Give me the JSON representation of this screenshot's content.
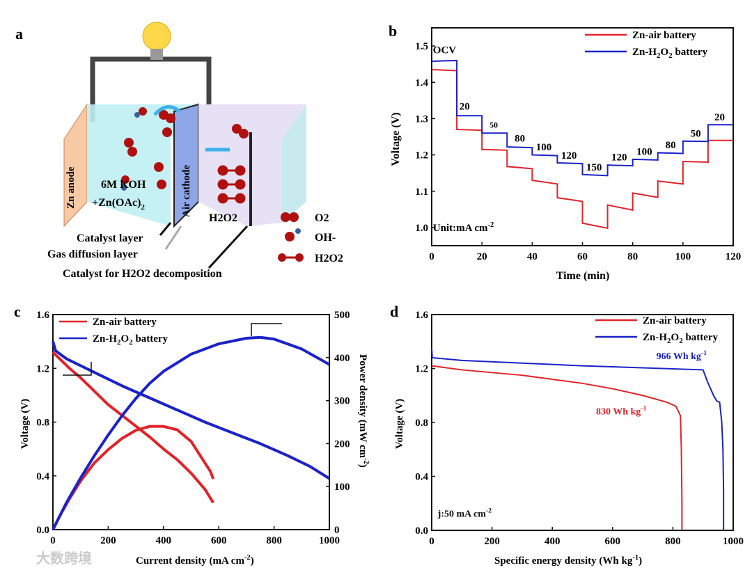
{
  "panel_a": {
    "label": "a",
    "anode": "Zn anode",
    "cathode": "Air cathode",
    "electrolyte_line1": "6M KOH",
    "electrolyte_line2": "+Zn(OAc)",
    "electrolyte_sub": "2",
    "h2o2_cell": "H2O2",
    "legend": [
      "O2",
      "OH-",
      "H2O2"
    ],
    "layers": [
      "Catalyst layer",
      "Gas diffusion layer",
      "Catalyst for H2O2 decomposition"
    ],
    "colors": {
      "red": "#b01010",
      "blue": "#3a5fa0"
    }
  },
  "watermark": "大数跨境",
  "chart_data": [
    {
      "id": "b",
      "label": "b",
      "type": "line",
      "xlabel": "Time (min)",
      "ylabel": "Voltage (V)",
      "xlim": [
        0,
        120
      ],
      "ylim": [
        0.95,
        1.55
      ],
      "xticks": [
        0,
        20,
        40,
        60,
        80,
        100,
        120
      ],
      "yticks": [
        1.0,
        1.1,
        1.2,
        1.3,
        1.4,
        1.5
      ],
      "legend_position": "top-right",
      "series": [
        {
          "name": "Zn-air battery",
          "color": "#e0242a",
          "steps": [
            [
              0,
              10,
              1.435,
              1.432
            ],
            [
              10,
              20,
              1.27,
              1.268
            ],
            [
              20,
              30,
              1.215,
              1.213
            ],
            [
              30,
              40,
              1.168,
              1.162
            ],
            [
              40,
              50,
              1.13,
              1.12
            ],
            [
              50,
              60,
              1.082,
              1.072
            ],
            [
              60,
              70,
              1.012,
              0.998
            ],
            [
              70,
              80,
              1.062,
              1.048
            ],
            [
              80,
              90,
              1.095,
              1.083
            ],
            [
              90,
              100,
              1.128,
              1.12
            ],
            [
              100,
              110,
              1.182,
              1.18
            ],
            [
              110,
              120,
              1.24,
              1.24
            ]
          ]
        },
        {
          "name": "Zn-H2O2 battery",
          "color": "#1a22c8",
          "steps": [
            [
              0,
              10,
              1.458,
              1.46
            ],
            [
              10,
              20,
              1.308,
              1.308
            ],
            [
              20,
              30,
              1.26,
              1.26
            ],
            [
              30,
              40,
              1.222,
              1.22
            ],
            [
              40,
              50,
              1.2,
              1.198
            ],
            [
              50,
              60,
              1.178,
              1.176
            ],
            [
              60,
              70,
              1.146,
              1.143
            ],
            [
              70,
              80,
              1.172,
              1.17
            ],
            [
              80,
              90,
              1.188,
              1.186
            ],
            [
              90,
              100,
              1.206,
              1.204
            ],
            [
              100,
              110,
              1.238,
              1.237
            ],
            [
              110,
              120,
              1.283,
              1.283
            ]
          ]
        }
      ],
      "annotations": [
        {
          "text": "OCV",
          "x": 0.5,
          "y": 1.48
        },
        {
          "text": "20",
          "x": 11,
          "y": 1.325
        },
        {
          "text": "50",
          "x": 23,
          "y": 1.275
        },
        {
          "text": "80",
          "x": 33,
          "y": 1.237
        },
        {
          "text": "100",
          "x": 41.5,
          "y": 1.213
        },
        {
          "text": "120",
          "x": 51.5,
          "y": 1.19
        },
        {
          "text": "150",
          "x": 61.5,
          "y": 1.157
        },
        {
          "text": "120",
          "x": 71.5,
          "y": 1.185
        },
        {
          "text": "100",
          "x": 81.5,
          "y": 1.2
        },
        {
          "text": "80",
          "x": 93,
          "y": 1.218
        },
        {
          "text": "50",
          "x": 103,
          "y": 1.25
        },
        {
          "text": "20",
          "x": 112.5,
          "y": 1.295
        },
        {
          "text": "Unit:mA cm",
          "sup": "-2",
          "x": 0.5,
          "y": 1.0
        }
      ]
    },
    {
      "id": "c",
      "label": "c",
      "type": "line",
      "xlabel": "Current density (mA cm",
      "xlabel_sup": "-2",
      "xlabel_end": ")",
      "ylabel": "Voltage (V)",
      "ylabel_right": "Power density (mW cm",
      "ylabel_right_sup": "-2",
      "ylabel_right_end": ")",
      "xlim": [
        0,
        1000
      ],
      "ylim": [
        0,
        1.6
      ],
      "ylim_right": [
        0,
        500
      ],
      "xticks": [
        0,
        200,
        400,
        600,
        800,
        1000
      ],
      "yticks": [
        0.0,
        0.4,
        0.8,
        1.2,
        1.6
      ],
      "yticks_right": [
        0,
        100,
        200,
        300,
        400,
        500
      ],
      "legend_position": "top-left",
      "series": [
        {
          "name": "Zn-air battery",
          "color": "#e0242a",
          "axis": "left",
          "x": [
            0,
            30,
            60,
            100,
            150,
            200,
            250,
            300,
            350,
            400,
            450,
            500,
            550,
            580
          ],
          "y": [
            1.32,
            1.26,
            1.2,
            1.13,
            1.03,
            0.93,
            0.85,
            0.77,
            0.69,
            0.6,
            0.52,
            0.42,
            0.3,
            0.2
          ]
        },
        {
          "name": "Zn-air battery power",
          "color": "#e0242a",
          "axis": "right",
          "x": [
            0,
            30,
            60,
            100,
            150,
            200,
            250,
            300,
            350,
            400,
            450,
            500,
            540,
            570,
            580
          ],
          "y": [
            0,
            38,
            72,
            113,
            155,
            186,
            212,
            231,
            240,
            240,
            232,
            205,
            165,
            135,
            118
          ]
        },
        {
          "name": "Zn-H2O2 battery",
          "color": "#1a22c8",
          "axis": "left",
          "x": [
            0,
            10,
            50,
            100,
            150,
            250,
            350,
            450,
            550,
            650,
            750,
            850,
            930,
            1000
          ],
          "y": [
            1.4,
            1.33,
            1.27,
            1.22,
            1.17,
            1.07,
            0.98,
            0.89,
            0.8,
            0.72,
            0.64,
            0.55,
            0.47,
            0.38
          ]
        },
        {
          "name": "Zn-H2O2 battery power",
          "color": "#1a22c8",
          "axis": "right",
          "x": [
            0,
            50,
            100,
            150,
            200,
            250,
            300,
            350,
            400,
            500,
            600,
            700,
            750,
            800,
            900,
            1000
          ],
          "y": [
            0,
            64,
            120,
            172,
            220,
            265,
            305,
            340,
            368,
            408,
            432,
            445,
            447,
            443,
            420,
            384
          ]
        }
      ]
    },
    {
      "id": "d",
      "label": "d",
      "type": "line",
      "xlabel": "Specific energy density (Wh kg",
      "xlabel_sup": "-1",
      "xlabel_end": ")",
      "ylabel": "Voltage (V)",
      "xlim": [
        0,
        1000
      ],
      "ylim": [
        0,
        1.6
      ],
      "xticks": [
        0,
        200,
        400,
        600,
        800,
        1000
      ],
      "yticks": [
        0.0,
        0.4,
        0.8,
        1.2,
        1.6
      ],
      "legend_position": "top-right",
      "series": [
        {
          "name": "Zn-air battery",
          "color": "#e0242a",
          "x": [
            0,
            100,
            200,
            300,
            400,
            500,
            600,
            700,
            780,
            810,
            825,
            828,
            830,
            830
          ],
          "y": [
            1.22,
            1.19,
            1.17,
            1.15,
            1.12,
            1.09,
            1.05,
            1.0,
            0.95,
            0.92,
            0.85,
            0.6,
            0.2,
            0
          ]
        },
        {
          "name": "Zn-H2O2 battery",
          "color": "#1a22c8",
          "x": [
            0,
            2,
            100,
            300,
            500,
            700,
            900,
            915,
            935,
            945,
            955,
            962,
            966,
            968,
            968
          ],
          "y": [
            1.35,
            1.28,
            1.26,
            1.24,
            1.22,
            1.205,
            1.19,
            1.1,
            1.0,
            0.96,
            0.95,
            0.8,
            0.6,
            0.3,
            0
          ]
        }
      ],
      "annotations": [
        {
          "text": "966 Wh kg",
          "sup": "-1",
          "color": "#1a22c8",
          "x": 745,
          "y": 1.27
        },
        {
          "text": "830 Wh kg",
          "sup": "-1",
          "color": "#e0242a",
          "x": 545,
          "y": 0.86
        },
        {
          "text": "j:50 mA cm",
          "sup": "-2",
          "color": "#111",
          "x": 20,
          "y": 0.1
        }
      ]
    }
  ]
}
